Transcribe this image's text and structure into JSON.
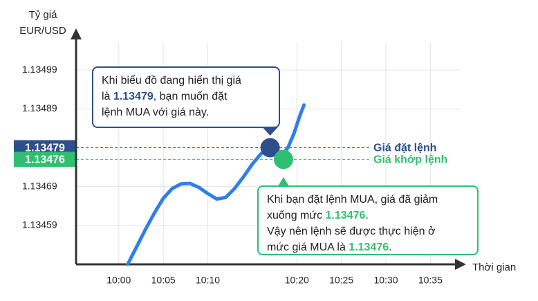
{
  "chart_data": {
    "type": "line",
    "y_label": [
      "Tỷ giá",
      "EUR/USD"
    ],
    "x_label": "Thời gian",
    "xlim": [
      -4.8,
      38.7
    ],
    "ylim": [
      1.13449,
      1.13509
    ],
    "yticks": [
      1.13459,
      1.13469,
      1.13489,
      1.13499
    ],
    "xticks": [
      {
        "value": 0,
        "label": "10:00"
      },
      {
        "value": 5,
        "label": "10:05"
      },
      {
        "value": 10,
        "label": "10:10"
      },
      {
        "value": 20,
        "label": "10:20"
      },
      {
        "value": 25,
        "label": "10:25"
      },
      {
        "value": 30,
        "label": "10:30"
      },
      {
        "value": 35,
        "label": "10:35"
      }
    ],
    "grid": true,
    "series": [
      {
        "color": "#2f7fe8",
        "x": [
          1,
          2,
          3,
          4,
          5,
          6,
          7,
          8,
          9,
          10,
          11,
          12,
          13,
          14,
          15,
          16,
          17,
          17.7,
          18.3,
          19,
          19.7,
          20.3,
          20.8
        ],
        "values": [
          1.13449,
          1.134535,
          1.13458,
          1.134622,
          1.13466,
          1.134685,
          1.134697,
          1.134698,
          1.134688,
          1.134672,
          1.134658,
          1.134662,
          1.134685,
          1.134715,
          1.134748,
          1.134775,
          1.13479,
          1.134785,
          1.13477,
          1.13479,
          1.134828,
          1.13487,
          1.1349
        ]
      }
    ],
    "reference_lines": [
      {
        "value": 1.13479,
        "name": "Giá đặt lệnh",
        "color": "#2d4f8e",
        "marker_x": 17
      },
      {
        "value": 1.13476,
        "name": "Giá khớp lệnh",
        "color": "#2fbf71",
        "marker_x": 18.5
      }
    ],
    "annotations": [
      {
        "lines": [
          [
            "Khi biểu đồ đang hiển thị giá"
          ],
          [
            "là ",
            {
              "text": "1.13479"
            },
            ", bạn muốn đặt"
          ],
          [
            "lệnh MUA với giá này."
          ]
        ],
        "color": "#2d4f8e"
      },
      {
        "lines": [
          [
            "Khi bạn đặt lệnh MUA, giá đã giảm"
          ],
          [
            "xuống mức ",
            {
              "text": "1.13476"
            },
            "."
          ],
          [
            "Vậy nên lệnh sẽ được thực hiện ở"
          ],
          [
            "mức giá MUA là ",
            {
              "text": "1.13476"
            },
            "."
          ]
        ],
        "color": "#2fbf71"
      }
    ]
  }
}
